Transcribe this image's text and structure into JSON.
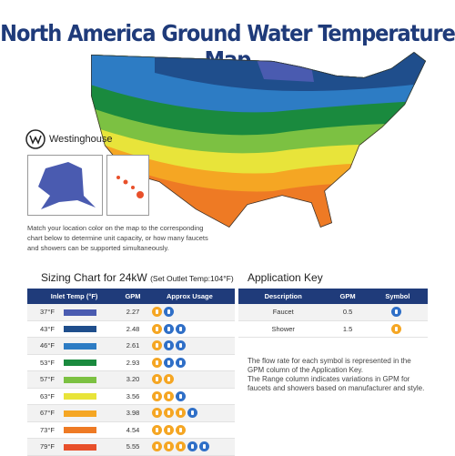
{
  "title": "North America Ground Water Temperature Map",
  "brand": "Westinghouse",
  "description": "Match your location color on the map to the corresponding chart below to determine unit capacity, or how many faucets and showers can be supported simultaneously.",
  "sizing": {
    "title": "Sizing Chart for 24kW",
    "subtitle": "(Set Outlet Temp:104°F)",
    "headers": [
      "Inlet Temp (°F)",
      "GPM",
      "Approx Usage"
    ],
    "rows": [
      {
        "inlet": "37°F",
        "gpm": "2.27",
        "color": "#4a5bb0"
      },
      {
        "inlet": "43°F",
        "gpm": "2.48",
        "color": "#1f4e8c"
      },
      {
        "inlet": "46°F",
        "gpm": "2.61",
        "color": "#2d7cc4"
      },
      {
        "inlet": "53°F",
        "gpm": "2.93",
        "color": "#1a8a3e"
      },
      {
        "inlet": "57°F",
        "gpm": "3.20",
        "color": "#7cc142"
      },
      {
        "inlet": "63°F",
        "gpm": "3.56",
        "color": "#e8e43a"
      },
      {
        "inlet": "67°F",
        "gpm": "3.98",
        "color": "#f5a623"
      },
      {
        "inlet": "73°F",
        "gpm": "4.54",
        "color": "#ee7a24"
      },
      {
        "inlet": "79°F",
        "gpm": "5.55",
        "color": "#e8502b"
      }
    ]
  },
  "key": {
    "title": "Application Key",
    "headers": [
      "Description",
      "GPM",
      "Symbol"
    ],
    "rows": [
      {
        "description": "Faucet",
        "gpm": "0.5"
      },
      {
        "description": "Shower",
        "gpm": "1.5"
      }
    ],
    "note1": "The flow rate for each symbol is represented in the GPM column of the Application Key.",
    "note2": "The Range column indicates variations in GPM for faucets and showers based on manufacturer and style."
  }
}
